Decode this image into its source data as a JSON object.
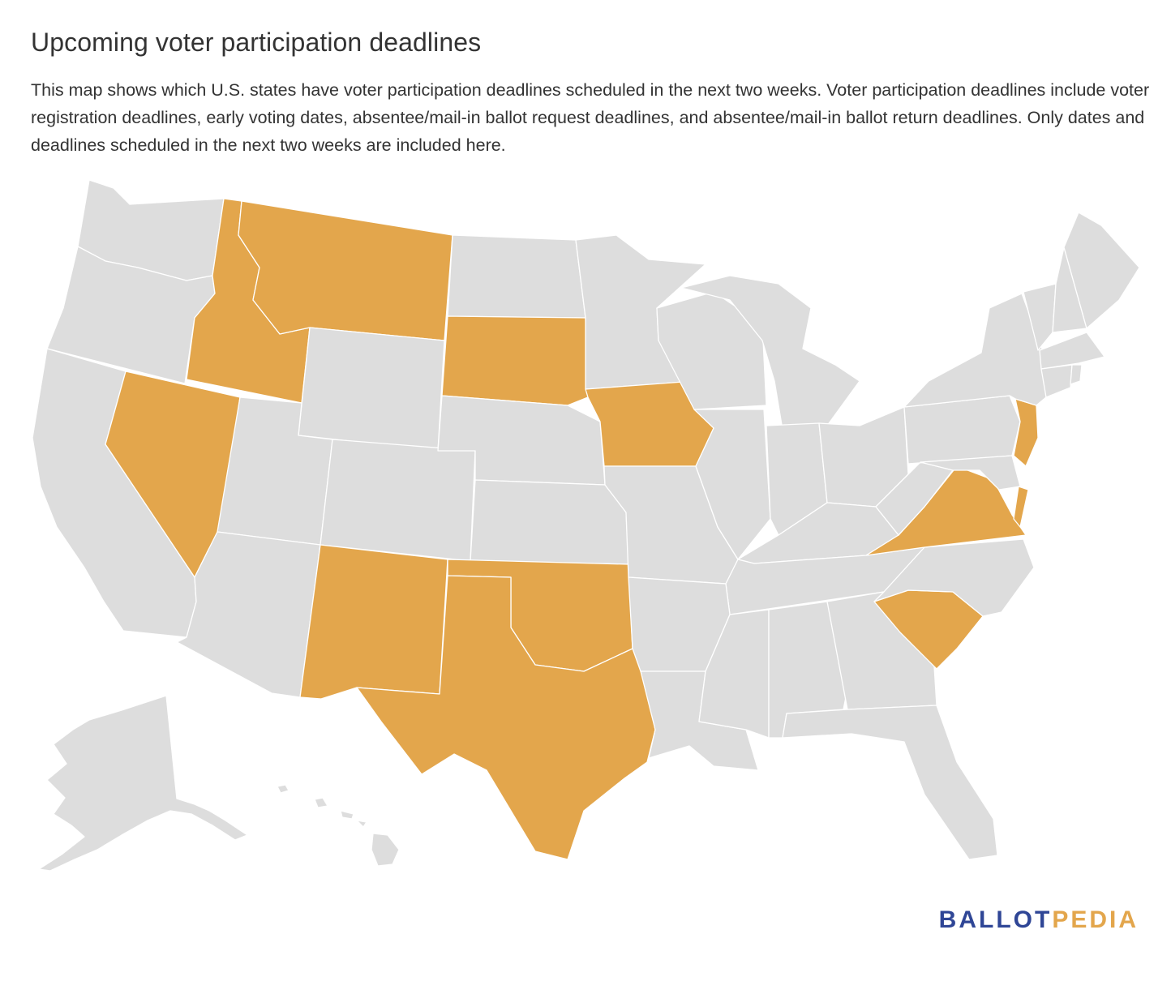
{
  "title": "Upcoming voter participation deadlines",
  "description": "This map shows which U.S. states have voter participation deadlines scheduled in the next two weeks. Voter participation deadlines include voter registration deadlines, early voting dates, absentee/mail-in ballot request deadlines, and absentee/mail-in ballot return deadlines. Only dates and deadlines scheduled in the next two weeks are included here.",
  "colors": {
    "highlight": "#e3a64c",
    "default": "#dddddd",
    "brand_blue": "#2f4696",
    "brand_gold": "#e3a64c"
  },
  "highlighted_states": [
    "Idaho",
    "Montana",
    "Nevada",
    "South Dakota",
    "Iowa",
    "New Mexico",
    "Oklahoma",
    "Texas",
    "Virginia",
    "South Carolina",
    "New Jersey",
    "Delaware"
  ],
  "logo": {
    "part1": "BALLOT",
    "part2": "PEDIA"
  }
}
